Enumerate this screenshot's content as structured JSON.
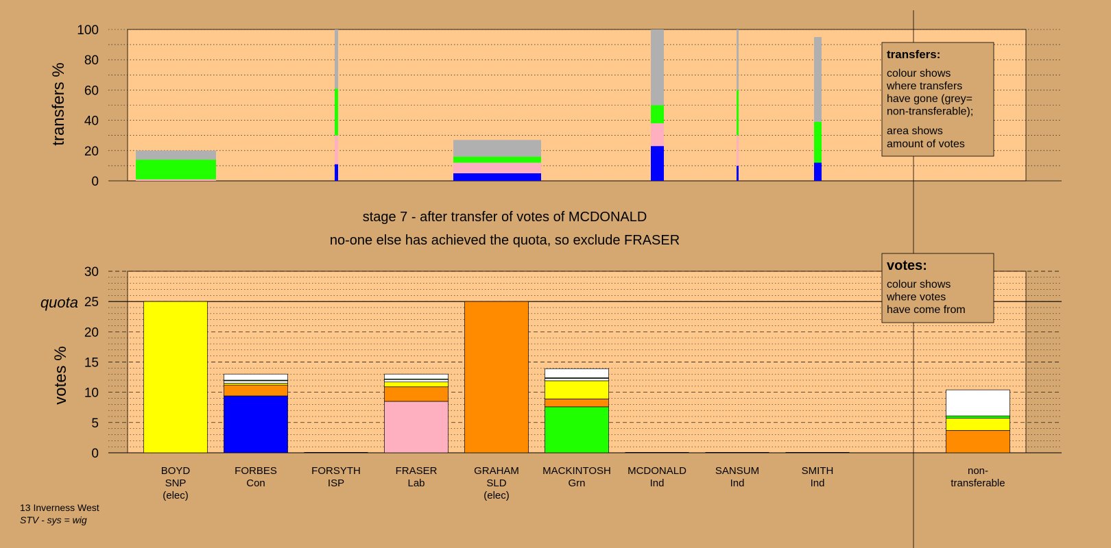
{
  "caption": {
    "stage": "stage 7 - after transfer of votes of MCDONALD",
    "action": "no-one else has achieved the quota, so exclude FRASER"
  },
  "footer": {
    "ward": "13 Inverness West",
    "system": "STV - sys = wig"
  },
  "colors": {
    "background": "#d4a870",
    "plot_bg": "#ffc88c",
    "boyd": "#ffff00",
    "forbes": "#0000ff",
    "fraser": "#ffb0c0",
    "graham": "#ff8c00",
    "mackintosh": "#20ff00",
    "nontransferable": "#b0b0b0",
    "other": "#ffffff"
  },
  "legends": {
    "transfers": {
      "title": "transfers:",
      "lines1": [
        "colour shows",
        "where transfers",
        "have gone (grey=",
        "non-transferable);"
      ],
      "lines2": [
        "area shows",
        "amount of votes"
      ]
    },
    "votes": {
      "title": "votes:",
      "lines": [
        "colour shows",
        "where votes",
        "have come from"
      ]
    }
  },
  "chart_data": [
    {
      "type": "bar",
      "ylabel": "transfers %",
      "ylim": [
        0,
        100
      ],
      "yticks": [
        "0",
        "20",
        "40",
        "60",
        "80",
        "100"
      ],
      "bars": [
        {
          "candidate": "BOYD",
          "segments": [
            [
              "fraser",
              1
            ],
            [
              "mackintosh",
              4
            ],
            [
              "mackintosh",
              9
            ],
            [
              "nontransferable",
              6
            ]
          ]
        },
        {
          "candidate": "FORSYTH",
          "segments": [
            [
              "forbes",
              11
            ],
            [
              "fraser",
              19
            ],
            [
              "mackintosh",
              31
            ],
            [
              "nontransferable",
              39
            ]
          ]
        },
        {
          "candidate": "FRASER",
          "segments": [
            [
              "forbes",
              5
            ],
            [
              "fraser",
              7
            ],
            [
              "mackintosh",
              4
            ],
            [
              "nontransferable",
              11
            ]
          ]
        },
        {
          "candidate": "MCDONALD",
          "segments": [
            [
              "forbes",
              23
            ],
            [
              "fraser",
              15
            ],
            [
              "mackintosh",
              12
            ],
            [
              "nontransferable",
              50
            ]
          ]
        },
        {
          "candidate": "SANSUM",
          "segments": [
            [
              "forbes",
              10
            ],
            [
              "fraser",
              20
            ],
            [
              "mackintosh",
              30
            ],
            [
              "nontransferable",
              40
            ]
          ]
        },
        {
          "candidate": "SMITH",
          "segments": [
            [
              "forbes",
              12
            ],
            [
              "mackintosh",
              27
            ],
            [
              "nontransferable",
              56
            ]
          ]
        }
      ]
    },
    {
      "type": "bar",
      "ylabel": "votes %",
      "ylim": [
        0,
        30
      ],
      "yticks": [
        "0",
        "5",
        "10",
        "15",
        "20",
        "25",
        "30"
      ],
      "quota": {
        "label": "quota",
        "value": 25
      },
      "categories": [
        {
          "name": "BOYD",
          "party": "SNP",
          "note": "(elec)"
        },
        {
          "name": "FORBES",
          "party": "Con",
          "note": ""
        },
        {
          "name": "FORSYTH",
          "party": "ISP",
          "note": ""
        },
        {
          "name": "FRASER",
          "party": "Lab",
          "note": ""
        },
        {
          "name": "GRAHAM",
          "party": "SLD",
          "note": "(elec)"
        },
        {
          "name": "MACKINTOSH",
          "party": "Grn",
          "note": ""
        },
        {
          "name": "MCDONALD",
          "party": "Ind",
          "note": ""
        },
        {
          "name": "SANSUM",
          "party": "Ind",
          "note": ""
        },
        {
          "name": "SMITH",
          "party": "Ind",
          "note": ""
        },
        {
          "name": "non-",
          "party": "transferable",
          "note": ""
        }
      ],
      "stacks": [
        [
          [
            "boyd",
            25
          ]
        ],
        [
          [
            "forbes",
            9.4
          ],
          [
            "graham",
            1.8
          ],
          [
            "boyd",
            0.3
          ],
          [
            "other",
            0.4
          ],
          [
            "mackintosh",
            0.1
          ],
          [
            "other",
            1.0
          ]
        ],
        [],
        [
          [
            "fraser",
            8.5
          ],
          [
            "graham",
            2.4
          ],
          [
            "boyd",
            0.8
          ],
          [
            "other",
            0.4
          ],
          [
            "mackintosh",
            0.1
          ],
          [
            "other",
            0.8
          ]
        ],
        [
          [
            "graham",
            25
          ]
        ],
        [
          [
            "mackintosh",
            7.6
          ],
          [
            "graham",
            1.3
          ],
          [
            "boyd",
            3.0
          ],
          [
            "other",
            0.4
          ],
          [
            "mackintosh",
            0.1
          ],
          [
            "other",
            1.5
          ]
        ],
        [],
        [],
        [],
        [
          [
            "graham",
            3.7
          ],
          [
            "boyd",
            2.0
          ],
          [
            "mackintosh",
            0.4
          ],
          [
            "other",
            4.3
          ]
        ]
      ]
    }
  ]
}
